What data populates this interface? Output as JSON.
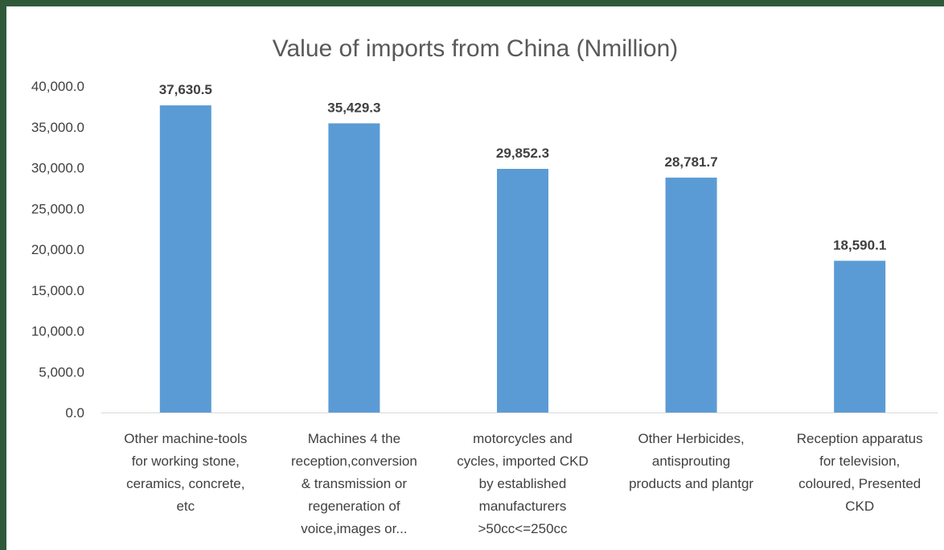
{
  "chart_data": {
    "type": "bar",
    "title": "Value of imports from China (Nmillion)",
    "xlabel": "",
    "ylabel": "",
    "ylim": [
      0,
      40000
    ],
    "yticks": [
      "0.0",
      "5,000.0",
      "10,000.0",
      "15,000.0",
      "20,000.0",
      "25,000.0",
      "30,000.0",
      "35,000.0",
      "40,000.0"
    ],
    "grid": false,
    "legend": "none",
    "bar_color": "#5b9bd5",
    "categories": [
      [
        "Other machine-tools",
        "for working stone,",
        "ceramics, concrete,",
        "etc"
      ],
      [
        "Machines 4 the",
        "reception,conversion",
        "& transmission or",
        "regeneration of",
        "voice,images or..."
      ],
      [
        "motorcycles and",
        "cycles, imported CKD",
        "by established",
        "manufacturers",
        ">50cc<=250cc"
      ],
      [
        "Other Herbicides,",
        "antisprouting",
        "products and plantgr"
      ],
      [
        "Reception apparatus",
        "for television,",
        "coloured, Presented",
        "CKD"
      ]
    ],
    "values": [
      37630.5,
      35429.3,
      29852.3,
      28781.7,
      18590.1
    ],
    "data_labels": [
      "37,630.5",
      "35,429.3",
      "29,852.3",
      "28,781.7",
      "18,590.1"
    ]
  }
}
